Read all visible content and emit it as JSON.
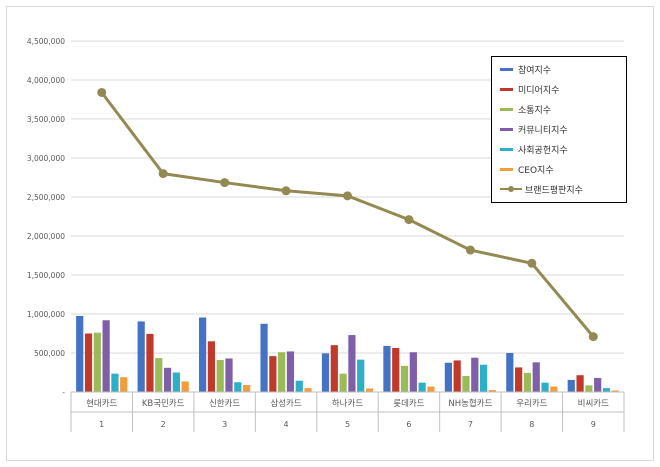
{
  "chart_data": {
    "type": "bar",
    "categories": [
      "현대카드",
      "KB국민카드",
      "신한카드",
      "삼성카드",
      "하나카드",
      "롯데카드",
      "NH농협카드",
      "우리카드",
      "비씨카드"
    ],
    "category_numbers": [
      "1",
      "2",
      "3",
      "4",
      "5",
      "6",
      "7",
      "8",
      "9"
    ],
    "ylim": [
      0,
      4500000
    ],
    "yticks": [
      "-",
      "500,000",
      "1,000,000",
      "1,500,000",
      "2,000,000",
      "2,500,000",
      "3,000,000",
      "3,500,000",
      "4,000,000",
      "4,500,000"
    ],
    "grid": true,
    "legend_position": "top-right",
    "series": [
      {
        "name": "참여지수",
        "kind": "bar",
        "color": "#4472c4",
        "values": [
          975000,
          905000,
          955000,
          875000,
          495000,
          590000,
          375000,
          500000,
          155000
        ]
      },
      {
        "name": "미디어지수",
        "kind": "bar",
        "color": "#c0392b",
        "values": [
          750000,
          745000,
          650000,
          460000,
          600000,
          565000,
          405000,
          315000,
          215000
        ]
      },
      {
        "name": "소통지수",
        "kind": "bar",
        "color": "#9bbb59",
        "values": [
          760000,
          435000,
          410000,
          510000,
          235000,
          335000,
          205000,
          245000,
          85000
        ]
      },
      {
        "name": "커뮤니티지수",
        "kind": "bar",
        "color": "#7f5fa8",
        "values": [
          920000,
          310000,
          430000,
          520000,
          730000,
          510000,
          440000,
          380000,
          180000
        ]
      },
      {
        "name": "사회공헌지수",
        "kind": "bar",
        "color": "#2eafc8",
        "values": [
          235000,
          250000,
          125000,
          145000,
          415000,
          120000,
          350000,
          120000,
          50000
        ]
      },
      {
        "name": "CEO지수",
        "kind": "bar",
        "color": "#f39c3c",
        "values": [
          190000,
          135000,
          90000,
          50000,
          45000,
          70000,
          25000,
          70000,
          20000
        ]
      },
      {
        "name": "브랜드평판지수",
        "kind": "line",
        "color": "#938953",
        "values": [
          3840000,
          2800000,
          2685000,
          2580000,
          2515000,
          2210000,
          1820000,
          1650000,
          710000
        ]
      }
    ]
  }
}
